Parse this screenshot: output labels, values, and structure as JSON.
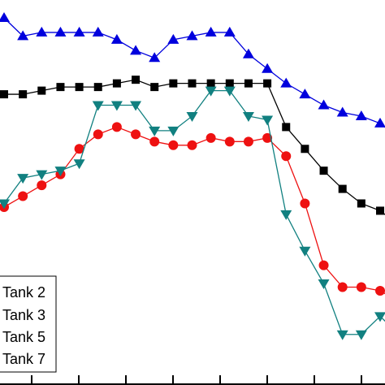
{
  "chart_data": {
    "type": "line",
    "title": "",
    "xlabel": "",
    "ylabel": "",
    "x": [
      0,
      1,
      2,
      3,
      4,
      5,
      6,
      7,
      8,
      9,
      10,
      11,
      12,
      13,
      14,
      15,
      16,
      17,
      18,
      19,
      20,
      21
    ],
    "xlim": [
      0,
      20.7
    ],
    "ylim": [
      0,
      100
    ],
    "grid": false,
    "legend_position": "bottom-left",
    "series": [
      {
        "name": "Tank 2",
        "color": "#000000",
        "marker": "square",
        "values": [
          79,
          79,
          80,
          81,
          81,
          81,
          82,
          83,
          81,
          82,
          82,
          82,
          82,
          82,
          82,
          70,
          64,
          58,
          53,
          49,
          47,
          43
        ]
      },
      {
        "name": "Tank 3",
        "color": "#ee1111",
        "marker": "circle",
        "values": [
          48,
          51,
          54,
          57,
          64,
          68,
          70,
          68,
          66,
          65,
          65,
          67,
          66,
          66,
          67,
          62,
          49,
          32,
          26,
          26,
          25,
          22
        ]
      },
      {
        "name": "Tank 5",
        "color": "#118080",
        "marker": "triangle-down",
        "values": [
          49,
          56,
          57,
          58,
          60,
          76,
          76,
          76,
          69,
          69,
          73,
          80,
          80,
          73,
          72,
          46,
          36,
          27,
          13,
          13,
          18,
          13
        ]
      },
      {
        "name": "Tank 7",
        "color": "#0000dd",
        "marker": "triangle-up",
        "values": [
          100,
          95,
          96,
          96,
          96,
          96,
          94,
          91,
          89,
          94,
          95,
          96,
          96,
          90,
          86,
          82,
          79,
          76,
          74,
          73,
          71,
          67
        ]
      }
    ]
  }
}
